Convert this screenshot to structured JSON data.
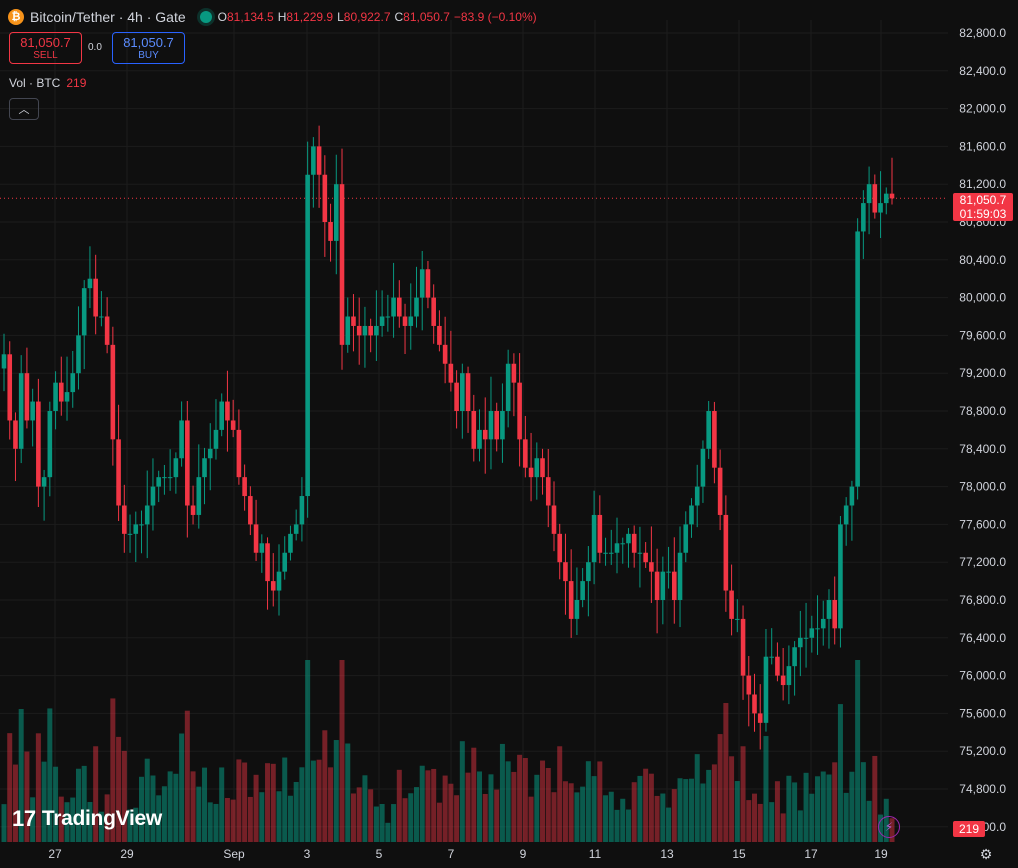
{
  "header": {
    "coin_icon": "bitcoin-icon",
    "symbol": "Bitcoin/Tether · 4h · Gate",
    "open_key": "O",
    "open": "81,134.5",
    "high_key": "H",
    "high": "81,229.9",
    "low_key": "L",
    "low": "80,922.7",
    "close_key": "C",
    "close": "81,050.7",
    "change": "−83.9 (−0.10%)"
  },
  "trade": {
    "sell_price": "81,050.7",
    "sell_label": "SELL",
    "spread": "0.0",
    "buy_price": "81,050.7",
    "buy_label": "BUY"
  },
  "volume_legend": {
    "label": "Vol · BTC",
    "value": "219"
  },
  "last_price": {
    "price": "81,050.7",
    "countdown": "01:59:03"
  },
  "volume_tag": "219",
  "brand": "TradingView",
  "colors": {
    "up": "#089981",
    "down": "#f23645",
    "background": "#0f0f0f",
    "grid": "#1c1c1c"
  },
  "chart_data": {
    "type": "candlestick",
    "y_axis": {
      "side": "right",
      "range": [
        74600,
        82900
      ],
      "ticks": [
        "82,800.0",
        "82,400.0",
        "82,000.0",
        "81,600.0",
        "81,200.0",
        "80,800.0",
        "80,400.0",
        "80,000.0",
        "79,600.0",
        "79,200.0",
        "78,800.0",
        "78,400.0",
        "78,000.0",
        "77,600.0",
        "77,200.0",
        "76,800.0",
        "76,400.0",
        "76,000.0",
        "75,600.0",
        "75,200.0",
        "74,800.0",
        "74,400.0"
      ]
    },
    "x_axis": {
      "labels": [
        "27",
        "29",
        "Sep",
        "3",
        "5",
        "7",
        "9",
        "11",
        "13",
        "15",
        "17",
        "19"
      ]
    },
    "grid": true,
    "candles_close": [
      79400,
      78700,
      78400,
      79200,
      78700,
      78900,
      78000,
      78100,
      78800,
      79100,
      78900,
      79000,
      79200,
      79600,
      80100,
      80200,
      79800,
      79800,
      79500,
      78500,
      77800,
      77500,
      77500,
      77600,
      77600,
      77800,
      78000,
      78100,
      78100,
      78100,
      78300,
      78700,
      77800,
      77700,
      78100,
      78300,
      78400,
      78600,
      78900,
      78700,
      78600,
      78100,
      77900,
      77600,
      77300,
      77400,
      77000,
      76900,
      77100,
      77300,
      77500,
      77600,
      77900,
      81300,
      81600,
      81300,
      80800,
      80600,
      81200,
      79500,
      79800,
      79700,
      79600,
      79700,
      79600,
      79700,
      79800,
      79800,
      80000,
      79800,
      79700,
      79800,
      80000,
      80300,
      80000,
      79700,
      79500,
      79300,
      79100,
      78800,
      79200,
      78800,
      78400,
      78600,
      78500,
      78800,
      78500,
      78800,
      79300,
      79100,
      78500,
      78200,
      78100,
      78300,
      78100,
      77800,
      77500,
      77200,
      77000,
      76600,
      76800,
      77000,
      77200,
      77700,
      77300,
      77300,
      77300,
      77400,
      77400,
      77500,
      77300,
      77300,
      77200,
      77100,
      76800,
      77100,
      77100,
      76800,
      77300,
      77600,
      77800,
      78000,
      78400,
      78800,
      78200,
      77700,
      76900,
      76600,
      76600,
      76000,
      75800,
      75600,
      75500,
      76200,
      76200,
      76000,
      75900,
      76100,
      76300,
      76400,
      76400,
      76500,
      76500,
      76600,
      76800,
      76500,
      77600,
      77800,
      78000,
      80700,
      81000,
      81200,
      80900,
      81000,
      81100,
      81050
    ],
    "volume_range": [
      0,
      3400
    ]
  }
}
